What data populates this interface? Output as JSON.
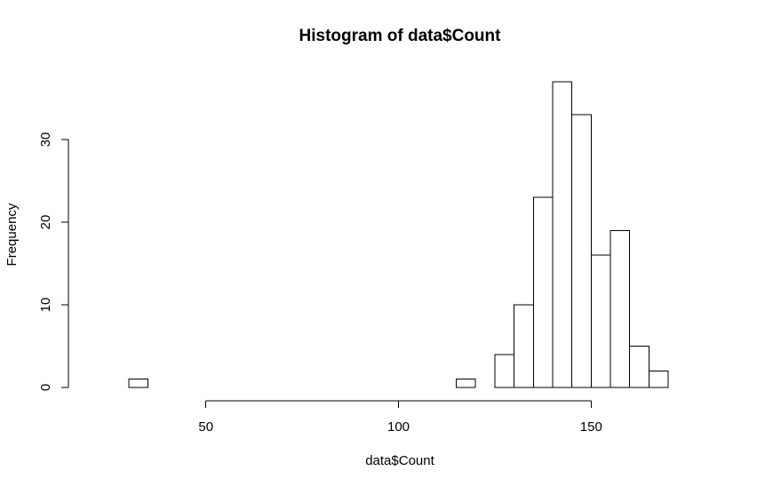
{
  "chart_data": {
    "type": "bar",
    "title": "Histogram of data$Count",
    "xlabel": "data$Count",
    "ylabel": "Frequency",
    "bin_width": 5,
    "bins": [
      {
        "start": 30,
        "end": 35,
        "count": 1
      },
      {
        "start": 35,
        "end": 40,
        "count": 0
      },
      {
        "start": 40,
        "end": 45,
        "count": 0
      },
      {
        "start": 45,
        "end": 50,
        "count": 0
      },
      {
        "start": 50,
        "end": 55,
        "count": 0
      },
      {
        "start": 55,
        "end": 60,
        "count": 0
      },
      {
        "start": 60,
        "end": 65,
        "count": 0
      },
      {
        "start": 65,
        "end": 70,
        "count": 0
      },
      {
        "start": 70,
        "end": 75,
        "count": 0
      },
      {
        "start": 75,
        "end": 80,
        "count": 0
      },
      {
        "start": 80,
        "end": 85,
        "count": 0
      },
      {
        "start": 85,
        "end": 90,
        "count": 0
      },
      {
        "start": 90,
        "end": 95,
        "count": 0
      },
      {
        "start": 95,
        "end": 100,
        "count": 0
      },
      {
        "start": 100,
        "end": 105,
        "count": 0
      },
      {
        "start": 105,
        "end": 110,
        "count": 0
      },
      {
        "start": 110,
        "end": 115,
        "count": 0
      },
      {
        "start": 115,
        "end": 120,
        "count": 1
      },
      {
        "start": 120,
        "end": 125,
        "count": 0
      },
      {
        "start": 125,
        "end": 130,
        "count": 4
      },
      {
        "start": 130,
        "end": 135,
        "count": 10
      },
      {
        "start": 135,
        "end": 140,
        "count": 23
      },
      {
        "start": 140,
        "end": 145,
        "count": 37
      },
      {
        "start": 145,
        "end": 150,
        "count": 33
      },
      {
        "start": 150,
        "end": 155,
        "count": 16
      },
      {
        "start": 155,
        "end": 160,
        "count": 19
      },
      {
        "start": 160,
        "end": 165,
        "count": 5
      },
      {
        "start": 165,
        "end": 170,
        "count": 2
      }
    ],
    "xlim": [
      30,
      170
    ],
    "ylim": [
      0,
      37
    ],
    "x_ticks": [
      50,
      100,
      150
    ],
    "y_ticks": [
      0,
      10,
      20,
      30
    ],
    "grid": false,
    "legend": "none",
    "colors": {
      "bar_fill": "#ffffff",
      "bar_stroke": "#000000",
      "axis": "#000000",
      "background": "#ffffff"
    }
  }
}
